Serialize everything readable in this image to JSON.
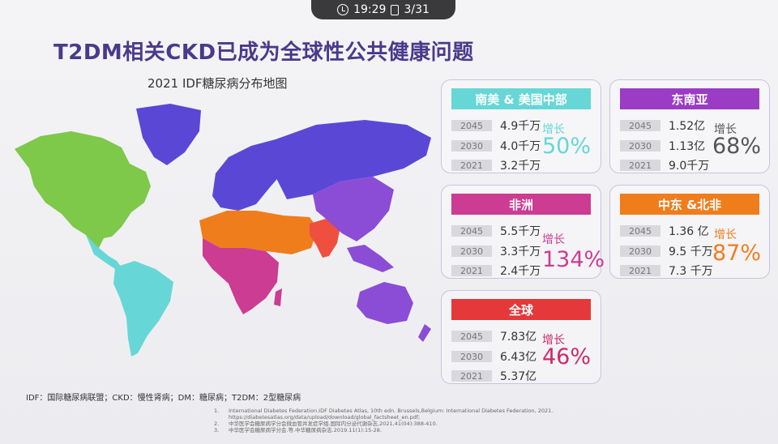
{
  "status_bar": {
    "time": "19:29",
    "page": "3/31"
  },
  "title": "T2DM相关CKD已成为全球性公共健康问题",
  "map_caption": "2021 IDF糖尿病分布地图",
  "colors": {
    "sa": "#66d7d6",
    "sea": "#9b3cc5",
    "africa": "#cc3c93",
    "mena": "#f07d1c",
    "global": "#e5383a",
    "na": "#7ec84a",
    "europe": "#5b47d6",
    "asia_pac": "#8b4cd6",
    "india": "#ef4f3e"
  },
  "regions": [
    {
      "id": "sa",
      "header": "南美 & 美国中部",
      "rows": [
        {
          "year": "2045",
          "value": "4.9千万"
        },
        {
          "year": "2030",
          "value": "4.0千万"
        },
        {
          "year": "2021",
          "value": "3.2千万"
        }
      ],
      "growth_label": "增长",
      "growth": "50%"
    },
    {
      "id": "sea",
      "header": "东南亚",
      "rows": [
        {
          "year": "2045",
          "value": "1.52亿"
        },
        {
          "year": "2030",
          "value": "1.13亿"
        },
        {
          "year": "2021",
          "value": "9.0千万"
        }
      ],
      "growth_label": "增长",
      "growth": "68%"
    },
    {
      "id": "africa",
      "header": "非洲",
      "rows": [
        {
          "year": "2045",
          "value": "5.5千万"
        },
        {
          "year": "2030",
          "value": "3.3千万"
        },
        {
          "year": "2021",
          "value": "2.4千万"
        }
      ],
      "growth_label": "增长",
      "growth": "134%"
    },
    {
      "id": "mena",
      "header": "中东 &北非",
      "rows": [
        {
          "year": "2045",
          "value": "1.36 亿"
        },
        {
          "year": "2030",
          "value": "9.5 千万"
        },
        {
          "year": "2021",
          "value": "7.3 千万"
        }
      ],
      "growth_label": "增长",
      "growth": "87%"
    },
    {
      "id": "global",
      "header": "全球",
      "rows": [
        {
          "year": "2045",
          "value": "7.83亿"
        },
        {
          "year": "2030",
          "value": "6.43亿"
        },
        {
          "year": "2021",
          "value": "5.37亿"
        }
      ],
      "growth_label": "增长",
      "growth": "46%"
    }
  ],
  "abbreviations": "IDF：国际糖尿病联盟；CKD：慢性肾病；DM：糖尿病；T2DM：2型糖尿病",
  "references": [
    {
      "num": "1.",
      "text": "International Diabetes Federation.IDF Diabetes Atlas, 10th edn. Brussels,Belgium: International Diabetes Federation, 2021."
    },
    {
      "num": "",
      "text": "https://diabetesatlas.org/data/upload/download/global_factsheet_en.pdf;"
    },
    {
      "num": "2.",
      "text": "中华医学会糖尿病学分会微血管并发症学组.国际内分泌代谢杂志,2021,41(04):388-410."
    },
    {
      "num": "3.",
      "text": "中华医学会糖尿病学分会.等.中华糖尿病杂志.2019.11(1):15-28."
    }
  ]
}
